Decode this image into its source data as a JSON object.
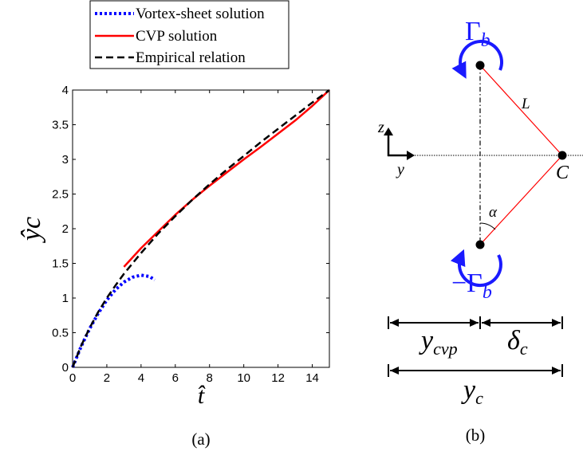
{
  "panel_a": {
    "caption": "(a)",
    "chart_data": {
      "type": "line",
      "title": "",
      "xlabel": "t̂",
      "ylabel": "ŷc",
      "xlim": [
        0,
        15
      ],
      "ylim": [
        0,
        4
      ],
      "xticks": [
        "0",
        "2",
        "4",
        "6",
        "8",
        "10",
        "12",
        "14"
      ],
      "yticks": [
        "0",
        "0.5",
        "1",
        "1.5",
        "2",
        "2.5",
        "3",
        "3.5",
        "4"
      ],
      "grid": false,
      "legend_position": "top, outside plot area",
      "series": [
        {
          "name": "Vortex-sheet solution",
          "color": "#0000ff",
          "style": "dotted",
          "x": [
            0,
            0.5,
            1,
            1.5,
            2,
            2.5,
            3,
            3.5,
            4,
            4.5,
            4.8
          ],
          "y": [
            0,
            0.3,
            0.56,
            0.78,
            0.97,
            1.12,
            1.23,
            1.3,
            1.33,
            1.31,
            1.26
          ]
        },
        {
          "name": "CVP solution",
          "color": "#ff0000",
          "style": "solid",
          "x": [
            3,
            4,
            5,
            6,
            7,
            8,
            9,
            10,
            11,
            12,
            13,
            14,
            15
          ],
          "y": [
            1.45,
            1.72,
            1.96,
            2.2,
            2.42,
            2.62,
            2.81,
            3.0,
            3.18,
            3.37,
            3.56,
            3.77,
            4.0
          ]
        },
        {
          "name": "Empirical relation",
          "color": "#000000",
          "style": "dashed",
          "x": [
            0,
            0.5,
            1,
            1.5,
            2,
            2.5,
            3,
            4,
            5,
            6,
            7,
            8,
            9,
            10,
            11,
            12,
            13,
            14,
            15
          ],
          "y": [
            0,
            0.31,
            0.57,
            0.8,
            1.0,
            1.18,
            1.35,
            1.65,
            1.93,
            2.18,
            2.42,
            2.64,
            2.85,
            3.05,
            3.25,
            3.44,
            3.63,
            3.82,
            4.0
          ]
        }
      ]
    }
  },
  "panel_b": {
    "caption": "(b)",
    "labels": {
      "gamma_top_symbol": "Γ",
      "gamma_top_sub": "b",
      "gamma_bottom_symbol": "−Γ",
      "gamma_bottom_sub": "b",
      "L": "L",
      "C": "C",
      "alpha": "α",
      "z": "z",
      "y": "y",
      "y_cvp_main": "y",
      "y_cvp_sub": "cvp",
      "delta_main": "δ",
      "delta_sub": "c",
      "y_c_main": "y",
      "y_c_sub": "c"
    },
    "colors": {
      "circulation": "#1a1aff",
      "connector": "#ff0000",
      "ink": "#000000"
    }
  }
}
